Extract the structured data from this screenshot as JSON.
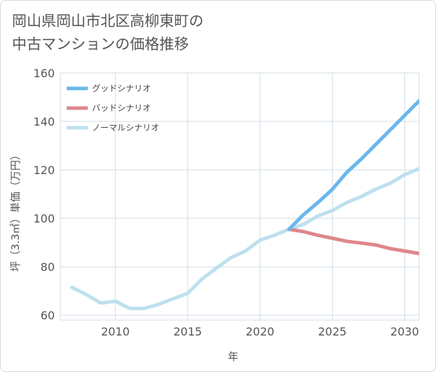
{
  "title_lines": [
    "岡山県岡山市北区高柳東町の",
    "中古マンションの価格推移"
  ],
  "chart_data": {
    "type": "line",
    "title": "岡山県岡山市北区高柳東町の中古マンションの価格推移",
    "xlabel": "年",
    "ylabel": "坪（3.3㎡）単価（万円）",
    "xlim": [
      2006.2,
      2031
    ],
    "ylim": [
      58,
      160
    ],
    "xticks": [
      2010,
      2015,
      2020,
      2025,
      2030
    ],
    "yticks": [
      60,
      80,
      100,
      120,
      140,
      160
    ],
    "grid": true,
    "legend_position": "top-left",
    "series": [
      {
        "name": "グッドシナリオ",
        "color": "#6ab7ec",
        "x": [
          2022,
          2023,
          2024,
          2025,
          2026,
          2027,
          2028,
          2029,
          2030,
          2031
        ],
        "y": [
          95.5,
          101.5,
          106.5,
          112,
          119,
          124.5,
          130.5,
          136.5,
          142.5,
          148.5
        ]
      },
      {
        "name": "バッドシナリオ",
        "color": "#de878c",
        "x": [
          2022,
          2023,
          2024,
          2025,
          2026,
          2027,
          2028,
          2029,
          2030,
          2031
        ],
        "y": [
          95.5,
          94.5,
          93,
          91.8,
          90.5,
          89.8,
          89,
          87.5,
          86.5,
          85.5
        ]
      },
      {
        "name": "ノーマルシナリオ",
        "color": "#bde0ef",
        "x": [
          2007,
          2008,
          2009,
          2010,
          2011,
          2012,
          2013,
          2014,
          2015,
          2016,
          2017,
          2018,
          2019,
          2020,
          2021,
          2022,
          2023,
          2024,
          2025,
          2026,
          2027,
          2028,
          2029,
          2030,
          2031
        ],
        "y": [
          71.5,
          68.5,
          65,
          65.8,
          62.8,
          62.8,
          64.5,
          66.8,
          69,
          75,
          79.5,
          83.8,
          86.5,
          91,
          93,
          95.5,
          97.5,
          101,
          103.2,
          106.5,
          109,
          112,
          114.5,
          118,
          120.5
        ]
      }
    ]
  }
}
